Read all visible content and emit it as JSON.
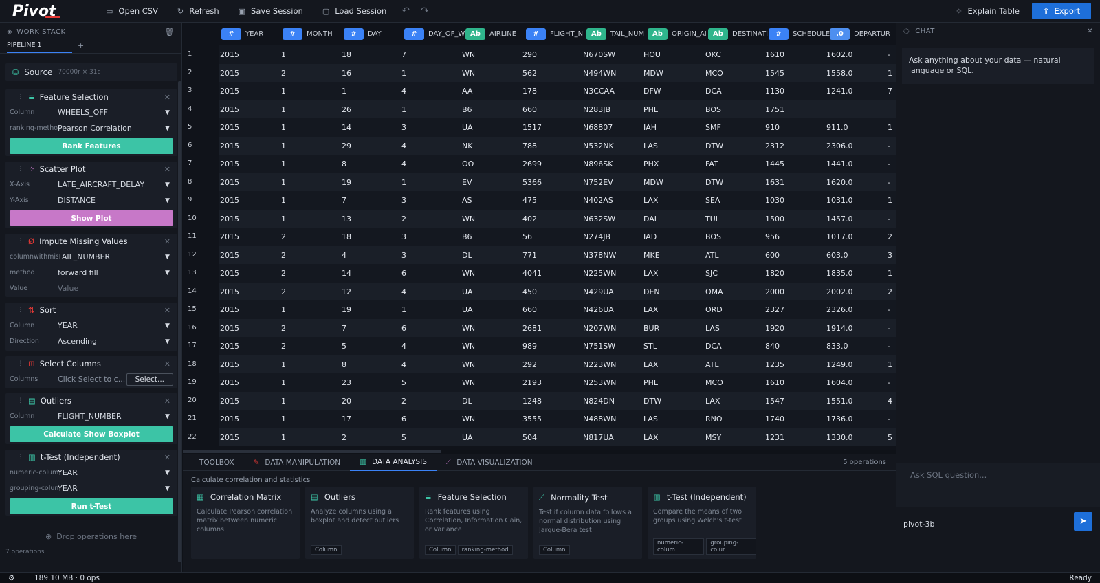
{
  "app": {
    "logo": "Pivot"
  },
  "toolbar": {
    "open_csv": "Open CSV",
    "refresh": "Refresh",
    "save_session": "Save Session",
    "load_session": "Load Session",
    "explain": "Explain Table",
    "export": "Export"
  },
  "workstack": {
    "title": "WORK STACK",
    "tab": "PIPELINE 1",
    "source": {
      "label": "Source",
      "meta": "70000r × 31c"
    },
    "feature": {
      "title": "Feature Selection",
      "l1": "Column",
      "v1": "WHEELS_OFF",
      "l2": "ranking-method",
      "v2": "Pearson Correlation",
      "btn": "Rank Features"
    },
    "scatter": {
      "title": "Scatter Plot",
      "l1": "X-Axis",
      "v1": "LATE_AIRCRAFT_DELAY",
      "l2": "Y-Axis",
      "v2": "DISTANCE",
      "btn": "Show Plot"
    },
    "impute": {
      "title": "Impute Missing Values",
      "l1": "columnwithmissing",
      "v1": "TAIL_NUMBER",
      "l2": "method",
      "v2": "forward fill",
      "l3": "Value",
      "v3": "Value"
    },
    "sort": {
      "title": "Sort",
      "l1": "Column",
      "v1": "YEAR",
      "l2": "Direction",
      "v2": "Ascending"
    },
    "select": {
      "title": "Select Columns",
      "l1": "Columns",
      "v1": "Click Select to c...",
      "btn": "Select..."
    },
    "outliers": {
      "title": "Outliers",
      "l1": "Column",
      "v1": "FLIGHT_NUMBER",
      "btn": "Calculate  Show Boxplot"
    },
    "ttest": {
      "title": "t-Test (Independent)",
      "l1": "numeric-column",
      "v1": "YEAR",
      "l2": "grouping-column",
      "v2": "YEAR",
      "btn": "Run t-Test"
    },
    "drop": "Drop operations here",
    "ops": "7 operations"
  },
  "table": {
    "headers": [
      {
        "type": "#",
        "name": "YEAR"
      },
      {
        "type": "#",
        "name": "MONTH"
      },
      {
        "type": "#",
        "name": "DAY"
      },
      {
        "type": "#",
        "name": "DAY_OF_W"
      },
      {
        "type": "Ab",
        "name": "AIRLINE"
      },
      {
        "type": "#",
        "name": "FLIGHT_N"
      },
      {
        "type": "Ab",
        "name": "TAIL_NUM"
      },
      {
        "type": "Ab",
        "name": "ORIGIN_AI"
      },
      {
        "type": "Ab",
        "name": "DESTINATI"
      },
      {
        "type": "#",
        "name": "SCHEDULE"
      },
      {
        "type": ".0",
        "name": "DEPARTUR"
      }
    ],
    "rows": [
      [
        "1",
        "2015",
        "1",
        "18",
        "7",
        "WN",
        "290",
        "N670SW",
        "HOU",
        "OKC",
        "1610",
        "1602.0",
        "-"
      ],
      [
        "2",
        "2015",
        "2",
        "16",
        "1",
        "WN",
        "562",
        "N494WN",
        "MDW",
        "MCO",
        "1545",
        "1558.0",
        "1"
      ],
      [
        "3",
        "2015",
        "1",
        "1",
        "4",
        "AA",
        "178",
        "N3CCAA",
        "DFW",
        "DCA",
        "1130",
        "1241.0",
        "7"
      ],
      [
        "4",
        "2015",
        "1",
        "26",
        "1",
        "B6",
        "660",
        "N283JB",
        "PHL",
        "BOS",
        "1751",
        "",
        ""
      ],
      [
        "5",
        "2015",
        "1",
        "14",
        "3",
        "UA",
        "1517",
        "N68807",
        "IAH",
        "SMF",
        "910",
        "911.0",
        "1"
      ],
      [
        "6",
        "2015",
        "1",
        "29",
        "4",
        "NK",
        "788",
        "N532NK",
        "LAS",
        "DTW",
        "2312",
        "2306.0",
        "-"
      ],
      [
        "7",
        "2015",
        "1",
        "8",
        "4",
        "OO",
        "2699",
        "N896SK",
        "PHX",
        "FAT",
        "1445",
        "1441.0",
        "-"
      ],
      [
        "8",
        "2015",
        "1",
        "19",
        "1",
        "EV",
        "5366",
        "N752EV",
        "MDW",
        "DTW",
        "1631",
        "1620.0",
        "-"
      ],
      [
        "9",
        "2015",
        "1",
        "7",
        "3",
        "AS",
        "475",
        "N402AS",
        "LAX",
        "SEA",
        "1030",
        "1031.0",
        "1"
      ],
      [
        "10",
        "2015",
        "1",
        "13",
        "2",
        "WN",
        "402",
        "N632SW",
        "DAL",
        "TUL",
        "1500",
        "1457.0",
        "-"
      ],
      [
        "11",
        "2015",
        "2",
        "18",
        "3",
        "B6",
        "56",
        "N274JB",
        "IAD",
        "BOS",
        "956",
        "1017.0",
        "2"
      ],
      [
        "12",
        "2015",
        "2",
        "4",
        "3",
        "DL",
        "771",
        "N378NW",
        "MKE",
        "ATL",
        "600",
        "603.0",
        "3"
      ],
      [
        "13",
        "2015",
        "2",
        "14",
        "6",
        "WN",
        "4041",
        "N225WN",
        "LAX",
        "SJC",
        "1820",
        "1835.0",
        "1"
      ],
      [
        "14",
        "2015",
        "2",
        "12",
        "4",
        "UA",
        "450",
        "N429UA",
        "DEN",
        "OMA",
        "2000",
        "2002.0",
        "2"
      ],
      [
        "15",
        "2015",
        "1",
        "19",
        "1",
        "UA",
        "660",
        "N426UA",
        "LAX",
        "ORD",
        "2327",
        "2326.0",
        "-"
      ],
      [
        "16",
        "2015",
        "2",
        "7",
        "6",
        "WN",
        "2681",
        "N207WN",
        "BUR",
        "LAS",
        "1920",
        "1914.0",
        "-"
      ],
      [
        "17",
        "2015",
        "2",
        "5",
        "4",
        "WN",
        "989",
        "N751SW",
        "STL",
        "DCA",
        "840",
        "833.0",
        "-"
      ],
      [
        "18",
        "2015",
        "1",
        "8",
        "4",
        "WN",
        "292",
        "N223WN",
        "LAX",
        "ATL",
        "1235",
        "1249.0",
        "1"
      ],
      [
        "19",
        "2015",
        "1",
        "23",
        "5",
        "WN",
        "2193",
        "N253WN",
        "PHL",
        "MCO",
        "1610",
        "1604.0",
        "-"
      ],
      [
        "20",
        "2015",
        "1",
        "20",
        "2",
        "DL",
        "1248",
        "N824DN",
        "DTW",
        "LAX",
        "1547",
        "1551.0",
        "4"
      ],
      [
        "21",
        "2015",
        "1",
        "17",
        "6",
        "WN",
        "3555",
        "N488WN",
        "LAS",
        "RNO",
        "1740",
        "1736.0",
        "-"
      ],
      [
        "22",
        "2015",
        "1",
        "2",
        "5",
        "UA",
        "504",
        "N817UA",
        "LAX",
        "MSY",
        "1231",
        "1330.0",
        "5"
      ]
    ]
  },
  "bottom": {
    "tabs": [
      "TOOLBOX",
      "DATA MANIPULATION",
      "DATA ANALYSIS",
      "DATA VISUALIZATION"
    ],
    "count": "5 operations",
    "subtitle": "Calculate correlation and statistics",
    "tools": [
      {
        "title": "Correlation Matrix",
        "desc": "Calculate Pearson correlation matrix between numeric columns",
        "tags": []
      },
      {
        "title": "Outliers",
        "desc": "Analyze columns using a boxplot and detect outliers",
        "tags": [
          "Column"
        ]
      },
      {
        "title": "Feature Selection",
        "desc": "Rank features using Correlation, Information Gain, or Variance",
        "tags": [
          "Column",
          "ranking-method"
        ]
      },
      {
        "title": "Normality Test",
        "desc": "Test if column data follows a normal distribution using Jarque-Bera test",
        "tags": [
          "Column"
        ]
      },
      {
        "title": "t-Test (Independent)",
        "desc": "Compare the means of two groups using Welch's t-test",
        "tags": [
          "numeric-colum",
          "grouping-colur"
        ]
      }
    ]
  },
  "chat": {
    "title": "CHAT",
    "message": "Ask anything about your data — natural language or SQL.",
    "placeholder": "Ask SQL question...",
    "model": "pivot-3b"
  },
  "status": {
    "memory": "189.10 MB · 0 ops",
    "state": "Ready"
  }
}
